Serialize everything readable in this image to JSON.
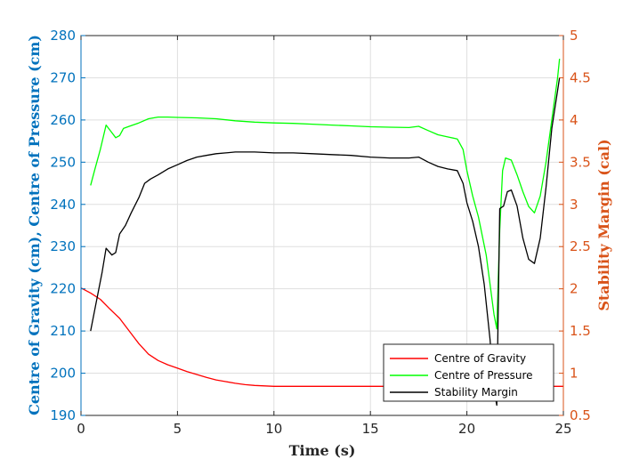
{
  "chart_data": {
    "type": "line",
    "xlabel": "Time (s)",
    "ylabel_left": "Centre of Gravity (cm), Centre of Pressure (cm)",
    "ylabel_right": "Stability Margin (cal)",
    "xlim": [
      0,
      25
    ],
    "ylim_left": [
      190,
      280
    ],
    "ylim_right": [
      0.5,
      5
    ],
    "grid": true,
    "legend_position": "bottom-right",
    "x_ticks": [
      0,
      5,
      10,
      15,
      20,
      25
    ],
    "y_left_ticks": [
      190,
      200,
      210,
      220,
      230,
      240,
      250,
      260,
      270,
      280
    ],
    "y_right_ticks": [
      "0.5",
      "1",
      "1.5",
      "2",
      "2.5",
      "3",
      "3.5",
      "4",
      "4.5",
      "5"
    ],
    "colors": {
      "left_axis": "#0072BD",
      "right_axis": "#D95319",
      "cog": "#FF0000",
      "cop": "#00FF00",
      "margin": "#000000"
    },
    "series": [
      {
        "name": "Centre of Gravity",
        "axis": "left",
        "color": "#FF0000",
        "points": [
          [
            0,
            220.2
          ],
          [
            0.5,
            219
          ],
          [
            1,
            217.5
          ],
          [
            1.5,
            215.2
          ],
          [
            2,
            213
          ],
          [
            2.5,
            210
          ],
          [
            3,
            207
          ],
          [
            3.5,
            204.5
          ],
          [
            4,
            203
          ],
          [
            4.5,
            202
          ],
          [
            5,
            201.2
          ],
          [
            5.5,
            200.4
          ],
          [
            6,
            199.7
          ],
          [
            6.5,
            199
          ],
          [
            7,
            198.4
          ],
          [
            7.5,
            198
          ],
          [
            8,
            197.6
          ],
          [
            8.5,
            197.3
          ],
          [
            9,
            197.1
          ],
          [
            9.5,
            197
          ],
          [
            10,
            196.9
          ],
          [
            15,
            196.9
          ],
          [
            20,
            196.9
          ],
          [
            25,
            196.9
          ]
        ]
      },
      {
        "name": "Centre of Pressure",
        "axis": "left",
        "color": "#00FF00",
        "points": [
          [
            0.5,
            244.5
          ],
          [
            0.7,
            248
          ],
          [
            1,
            253
          ],
          [
            1.3,
            258.8
          ],
          [
            1.6,
            257
          ],
          [
            1.8,
            255.8
          ],
          [
            2,
            256.3
          ],
          [
            2.2,
            258
          ],
          [
            2.5,
            258.5
          ],
          [
            3,
            259.3
          ],
          [
            3.5,
            260.3
          ],
          [
            4,
            260.7
          ],
          [
            4.5,
            260.7
          ],
          [
            5,
            260.6
          ],
          [
            6,
            260.5
          ],
          [
            7,
            260.3
          ],
          [
            8,
            259.8
          ],
          [
            9,
            259.5
          ],
          [
            10,
            259.3
          ],
          [
            11,
            259.2
          ],
          [
            12,
            259
          ],
          [
            13,
            258.8
          ],
          [
            14,
            258.6
          ],
          [
            15,
            258.4
          ],
          [
            16,
            258.3
          ],
          [
            17,
            258.2
          ],
          [
            17.5,
            258.5
          ],
          [
            18,
            257.5
          ],
          [
            18.5,
            256.5
          ],
          [
            19,
            256
          ],
          [
            19.5,
            255.5
          ],
          [
            19.8,
            253
          ],
          [
            20,
            248
          ],
          [
            20.3,
            242
          ],
          [
            20.6,
            237
          ],
          [
            21,
            228
          ],
          [
            21.4,
            214
          ],
          [
            21.55,
            210.5
          ],
          [
            21.7,
            234
          ],
          [
            21.85,
            248
          ],
          [
            22,
            251
          ],
          [
            22.3,
            250.5
          ],
          [
            22.6,
            247
          ],
          [
            22.9,
            243
          ],
          [
            23.2,
            239.5
          ],
          [
            23.5,
            238
          ],
          [
            23.8,
            242
          ],
          [
            24.1,
            250
          ],
          [
            24.4,
            260
          ],
          [
            24.7,
            270
          ],
          [
            24.8,
            274.5
          ]
        ]
      },
      {
        "name": "Stability Margin",
        "axis": "right",
        "color": "#000000",
        "points": [
          [
            0.5,
            1.5
          ],
          [
            0.8,
            1.85
          ],
          [
            1.1,
            2.2
          ],
          [
            1.3,
            2.48
          ],
          [
            1.6,
            2.4
          ],
          [
            1.8,
            2.43
          ],
          [
            2,
            2.65
          ],
          [
            2.3,
            2.75
          ],
          [
            2.6,
            2.9
          ],
          [
            3,
            3.08
          ],
          [
            3.3,
            3.25
          ],
          [
            3.6,
            3.3
          ],
          [
            4,
            3.35
          ],
          [
            4.5,
            3.42
          ],
          [
            5,
            3.47
          ],
          [
            5.5,
            3.52
          ],
          [
            6,
            3.56
          ],
          [
            6.5,
            3.58
          ],
          [
            7,
            3.6
          ],
          [
            7.5,
            3.61
          ],
          [
            8,
            3.62
          ],
          [
            8.5,
            3.62
          ],
          [
            9,
            3.62
          ],
          [
            10,
            3.61
          ],
          [
            11,
            3.61
          ],
          [
            12,
            3.6
          ],
          [
            13,
            3.59
          ],
          [
            14,
            3.58
          ],
          [
            15,
            3.56
          ],
          [
            16,
            3.55
          ],
          [
            17,
            3.55
          ],
          [
            17.5,
            3.56
          ],
          [
            18,
            3.5
          ],
          [
            18.5,
            3.45
          ],
          [
            19,
            3.42
          ],
          [
            19.5,
            3.4
          ],
          [
            19.8,
            3.25
          ],
          [
            20,
            3.02
          ],
          [
            20.3,
            2.8
          ],
          [
            20.6,
            2.5
          ],
          [
            20.9,
            2.05
          ],
          [
            21.2,
            1.4
          ],
          [
            21.4,
            0.8
          ],
          [
            21.55,
            0.62
          ],
          [
            21.7,
            2.95
          ],
          [
            21.9,
            2.98
          ],
          [
            22.1,
            3.15
          ],
          [
            22.3,
            3.17
          ],
          [
            22.6,
            2.98
          ],
          [
            22.9,
            2.6
          ],
          [
            23.2,
            2.35
          ],
          [
            23.5,
            2.3
          ],
          [
            23.8,
            2.6
          ],
          [
            24.1,
            3.2
          ],
          [
            24.4,
            3.9
          ],
          [
            24.8,
            4.5
          ]
        ]
      }
    ]
  }
}
